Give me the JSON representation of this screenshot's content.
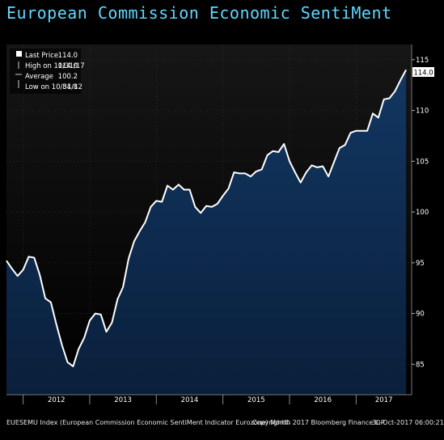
{
  "header": {
    "title": "European Commission Economic SentiMent"
  },
  "legend": {
    "rows": [
      {
        "label": "Last Price",
        "value": "114.0"
      },
      {
        "label": "High on 10/31/17",
        "value": "114.0"
      },
      {
        "label": "Average",
        "value": "100.2"
      },
      {
        "label": "Low on 10/31/12",
        "value": "84.8"
      }
    ]
  },
  "footer": {
    "left": "EUESEMU Index (European Commission Economic SentiMent Indicator Eurozone) Month",
    "center": "Copyright© 2017 Bloomberg Finance L.P.",
    "right": "30-Oct-2017 06:00:21"
  },
  "colors": {
    "background": "#000000",
    "plot_top": "#121212",
    "area_fill": "#0e2b4f",
    "line": "#ffffff",
    "title": "#5fd7ff",
    "grid": "#3a3a3a"
  },
  "chart_data": {
    "type": "area",
    "title": "European Commission Economic SentiMent",
    "xlabel": "",
    "ylabel": "",
    "ylim": [
      82,
      116.5
    ],
    "xlim": [
      "2011-10",
      "2017-11"
    ],
    "yticks": [
      85,
      90,
      95,
      100,
      105,
      110,
      115
    ],
    "xtick_labels": [
      "2012",
      "2013",
      "2014",
      "2015",
      "2016",
      "2017"
    ],
    "last_value_label": "114.0",
    "grid": true,
    "legend_position": "top-left",
    "series": [
      {
        "name": "Last Price",
        "x": [
          "2011-10",
          "2011-11",
          "2011-12",
          "2012-01",
          "2012-02",
          "2012-03",
          "2012-04",
          "2012-05",
          "2012-06",
          "2012-07",
          "2012-08",
          "2012-09",
          "2012-10",
          "2012-11",
          "2012-12",
          "2013-01",
          "2013-02",
          "2013-03",
          "2013-04",
          "2013-05",
          "2013-06",
          "2013-07",
          "2013-08",
          "2013-09",
          "2013-10",
          "2013-11",
          "2013-12",
          "2014-01",
          "2014-02",
          "2014-03",
          "2014-04",
          "2014-05",
          "2014-06",
          "2014-07",
          "2014-08",
          "2014-09",
          "2014-10",
          "2014-11",
          "2014-12",
          "2015-01",
          "2015-02",
          "2015-03",
          "2015-04",
          "2015-05",
          "2015-06",
          "2015-07",
          "2015-08",
          "2015-09",
          "2015-10",
          "2015-11",
          "2015-12",
          "2016-01",
          "2016-02",
          "2016-03",
          "2016-04",
          "2016-05",
          "2016-06",
          "2016-07",
          "2016-08",
          "2016-09",
          "2016-10",
          "2016-11",
          "2016-12",
          "2017-01",
          "2017-02",
          "2017-03",
          "2017-04",
          "2017-05",
          "2017-06",
          "2017-07",
          "2017-08",
          "2017-09",
          "2017-10"
        ],
        "y": [
          95.2,
          94.4,
          93.7,
          94.3,
          95.6,
          95.5,
          93.8,
          91.5,
          91.1,
          88.9,
          86.9,
          85.2,
          84.8,
          86.5,
          87.6,
          89.3,
          90.0,
          89.9,
          88.2,
          89.1,
          91.4,
          92.6,
          95.4,
          97.1,
          98.1,
          99.0,
          100.5,
          101.1,
          101.0,
          102.6,
          102.2,
          102.7,
          102.2,
          102.2,
          100.5,
          99.9,
          100.6,
          100.5,
          100.8,
          101.6,
          102.3,
          103.9,
          103.8,
          103.8,
          103.5,
          104.0,
          104.2,
          105.6,
          106.0,
          105.9,
          106.7,
          105.0,
          103.9,
          102.9,
          103.9,
          104.6,
          104.4,
          104.5,
          103.5,
          104.9,
          106.3,
          106.6,
          107.8,
          108.0,
          108.0,
          108.0,
          109.7,
          109.3,
          111.1,
          111.2,
          111.9,
          113.0,
          114.0
        ]
      }
    ]
  }
}
